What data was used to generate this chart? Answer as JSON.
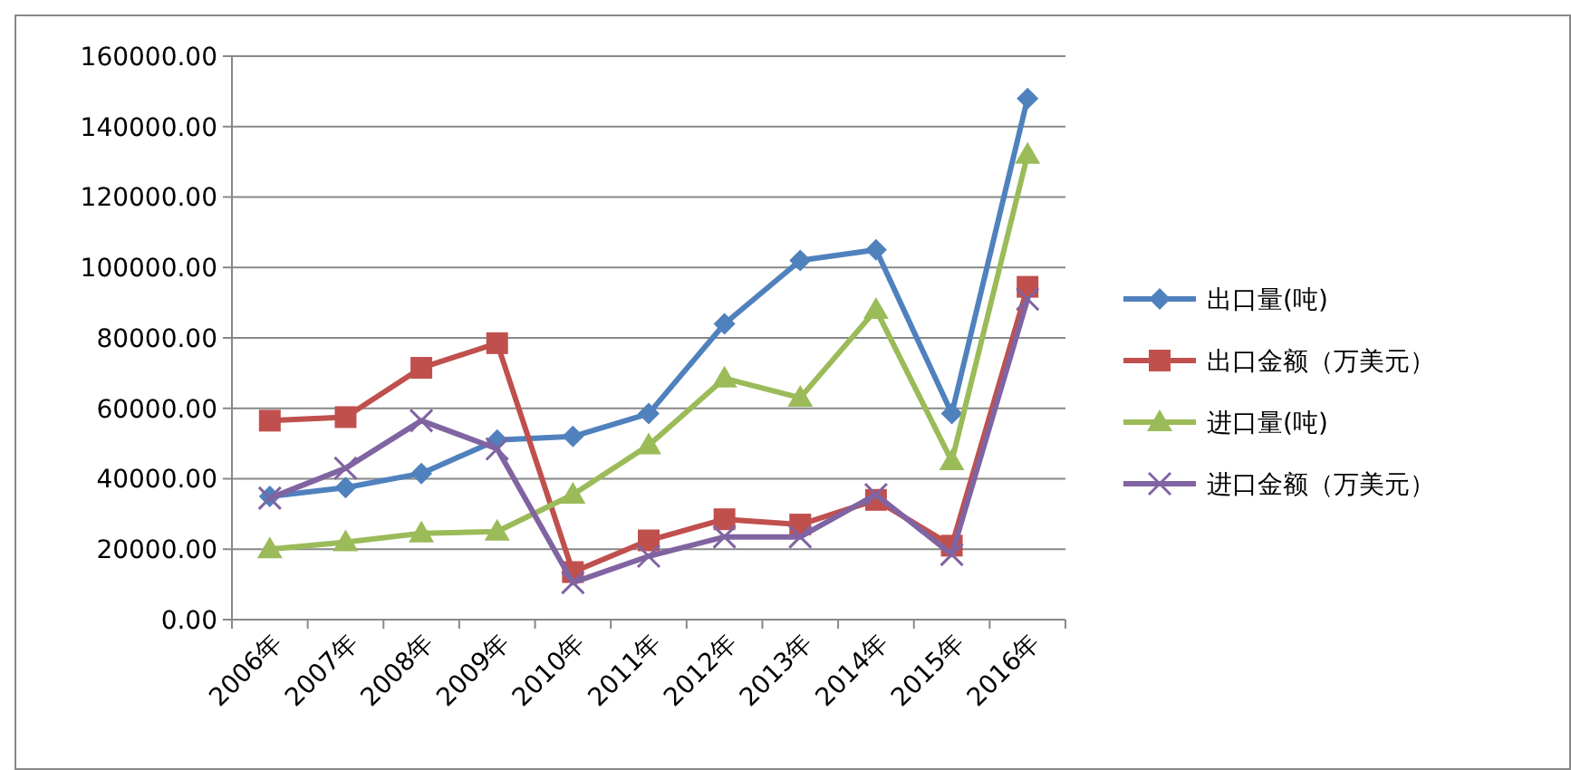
{
  "chart_data": {
    "type": "line",
    "categories": [
      "2006年",
      "2007年",
      "2008年",
      "2009年",
      "2010年",
      "2011年",
      "2012年",
      "2013年",
      "2014年",
      "2015年",
      "2016年"
    ],
    "series": [
      {
        "name": "出口量(吨)",
        "color": "#4f81bd",
        "marker": "diamond",
        "values": [
          35000,
          37500,
          41500,
          51000,
          52000,
          58500,
          84000,
          102000,
          105000,
          58500,
          148000
        ]
      },
      {
        "name": "出口金额（万美元）",
        "color": "#c0504d",
        "marker": "square",
        "values": [
          56500,
          57500,
          71500,
          78500,
          13500,
          22500,
          28500,
          27000,
          34000,
          21000,
          94500
        ]
      },
      {
        "name": "进口量(吨)",
        "color": "#9bbb59",
        "marker": "triangle",
        "values": [
          20000,
          22000,
          24500,
          25000,
          35500,
          49500,
          68500,
          63000,
          88000,
          45000,
          132000
        ]
      },
      {
        "name": "进口金额（万美元）",
        "color": "#8064a2",
        "marker": "cross",
        "values": [
          34500,
          43000,
          56500,
          48500,
          10500,
          18000,
          23500,
          23500,
          35500,
          18500,
          91000
        ]
      }
    ],
    "ylim": [
      0,
      160000
    ],
    "yticks": [
      {
        "value": 0,
        "label": "0.00"
      },
      {
        "value": 20000,
        "label": "20000.00"
      },
      {
        "value": 40000,
        "label": "40000.00"
      },
      {
        "value": 60000,
        "label": "60000.00"
      },
      {
        "value": 80000,
        "label": "80000.00"
      },
      {
        "value": 100000,
        "label": "100000.00"
      },
      {
        "value": 120000,
        "label": "120000.00"
      },
      {
        "value": 140000,
        "label": "140000.00"
      },
      {
        "value": 160000,
        "label": "160000.00"
      }
    ],
    "grid": "y",
    "legend": "right"
  }
}
